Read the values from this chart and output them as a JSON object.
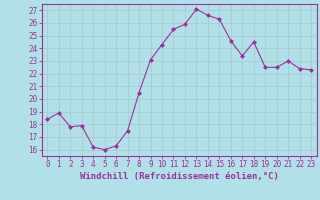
{
  "x": [
    0,
    1,
    2,
    3,
    4,
    5,
    6,
    7,
    8,
    9,
    10,
    11,
    12,
    13,
    14,
    15,
    16,
    17,
    18,
    19,
    20,
    21,
    22,
    23
  ],
  "y": [
    18.4,
    18.9,
    17.8,
    17.9,
    16.2,
    16.0,
    16.3,
    17.5,
    20.5,
    23.1,
    24.3,
    25.5,
    25.9,
    27.1,
    26.6,
    26.3,
    24.6,
    23.4,
    24.5,
    22.5,
    22.5,
    23.0,
    22.4,
    22.3
  ],
  "line_color": "#993399",
  "marker": "D",
  "marker_size": 2.0,
  "bg_color": "#b2e0e8",
  "grid_color": "#aacccc",
  "xlabel": "Windchill (Refroidissement éolien,°C)",
  "xlabel_fontsize": 6.5,
  "tick_fontsize": 5.5,
  "ylim": [
    15.5,
    27.5
  ],
  "yticks": [
    16,
    17,
    18,
    19,
    20,
    21,
    22,
    23,
    24,
    25,
    26,
    27
  ],
  "xticks": [
    0,
    1,
    2,
    3,
    4,
    5,
    6,
    7,
    8,
    9,
    10,
    11,
    12,
    13,
    14,
    15,
    16,
    17,
    18,
    19,
    20,
    21,
    22,
    23
  ],
  "xlim": [
    -0.5,
    23.5
  ]
}
